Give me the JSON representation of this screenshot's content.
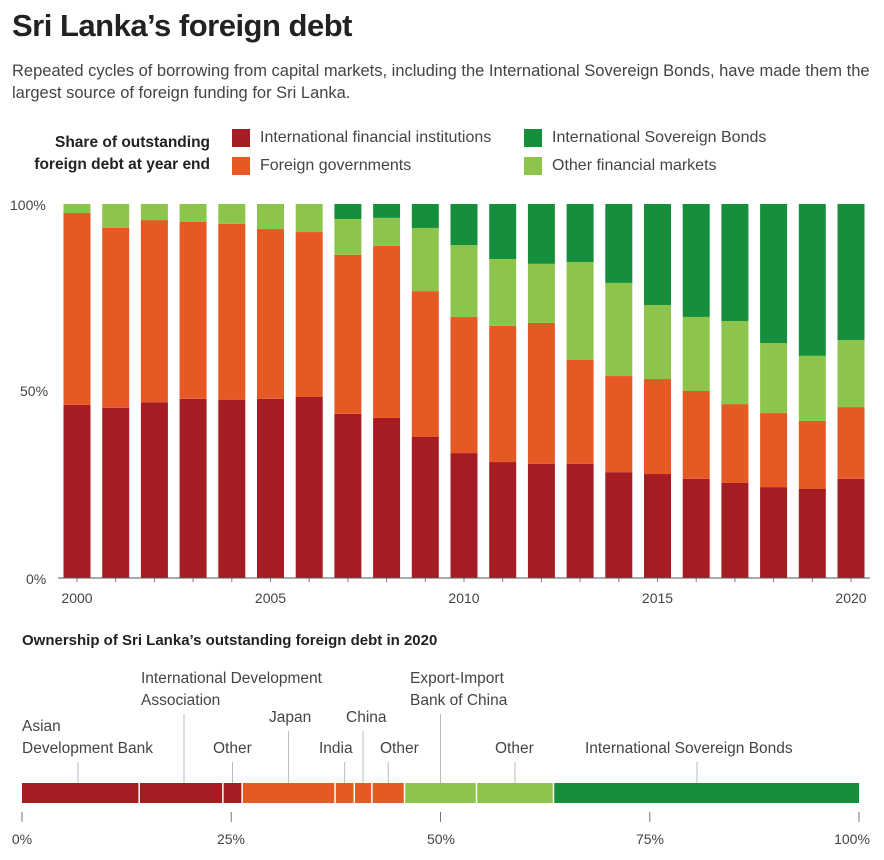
{
  "title": "Sri Lanka’s foreign debt",
  "subtitle": "Repeated cycles of borrowing from capital markets, including the International Sovereign Bonds, have made them the largest source of foreign funding for Sri Lanka.",
  "colors": {
    "ifi": "#a51d23",
    "fg": "#e65925",
    "isb": "#168f3c",
    "ofm": "#8dc44b"
  },
  "chart_data": [
    {
      "type": "bar",
      "stacked": true,
      "title": "Share of outstanding foreign debt at year end",
      "title_lines": [
        "Share of outstanding",
        "foreign debt at year end"
      ],
      "legend": [
        "International financial institutions",
        "Foreign governments",
        "International Sovereign Bonds",
        "Other financial markets"
      ],
      "legend_placement": "top",
      "categories": [
        2000,
        2001,
        2002,
        2003,
        2004,
        2005,
        2006,
        2007,
        2008,
        2009,
        2010,
        2011,
        2012,
        2013,
        2014,
        2015,
        2016,
        2017,
        2018,
        2019,
        2020
      ],
      "x_tick_labels": [
        "2000",
        "2005",
        "2010",
        "2015",
        "2020"
      ],
      "y_tick_labels": [
        "100%",
        "50%",
        "0%"
      ],
      "ylim": [
        0,
        100
      ],
      "series": [
        {
          "name": "International financial institutions",
          "key": "ifi",
          "values": [
            46.3,
            45.5,
            47.0,
            47.9,
            47.6,
            47.9,
            48.4,
            43.9,
            42.8,
            37.7,
            33.4,
            31.0,
            30.5,
            30.5,
            28.3,
            27.8,
            26.5,
            25.4,
            24.3,
            23.8,
            26.5
          ]
        },
        {
          "name": "Foreign governments",
          "key": "fg",
          "values": [
            51.3,
            48.1,
            48.7,
            47.3,
            47.1,
            45.4,
            44.1,
            42.5,
            46.0,
            39.0,
            36.4,
            36.4,
            37.7,
            27.8,
            25.7,
            25.4,
            23.5,
            21.1,
            19.8,
            18.2,
            19.2
          ]
        },
        {
          "name": "Other financial markets",
          "key": "ofm",
          "values": [
            2.4,
            6.4,
            4.3,
            4.8,
            5.3,
            6.7,
            7.5,
            9.6,
            7.5,
            16.9,
            19.2,
            17.9,
            15.8,
            26.2,
            24.9,
            19.8,
            19.8,
            22.2,
            18.7,
            17.4,
            17.9
          ]
        },
        {
          "name": "International Sovereign Bonds",
          "key": "isb",
          "values": [
            0,
            0,
            0,
            0,
            0,
            0,
            0,
            4.0,
            3.7,
            6.4,
            11.0,
            14.7,
            16.0,
            15.5,
            21.1,
            27.0,
            30.2,
            31.3,
            37.2,
            40.6,
            36.4
          ]
        }
      ]
    },
    {
      "type": "bar",
      "stacked": true,
      "orientation": "horizontal",
      "title": "Ownership of Sri Lanka’s outstanding foreign debt in 2020",
      "x_tick_labels": [
        "0%",
        "25%",
        "50%",
        "75%",
        "100%"
      ],
      "xlim": [
        0,
        100
      ],
      "segments": [
        {
          "label": "Asian Development Bank",
          "lines": [
            "Asian",
            "Development Bank"
          ],
          "group": "ifi",
          "value": 14.0
        },
        {
          "label": "International Development Association",
          "lines": [
            "International Development",
            "Association"
          ],
          "group": "ifi",
          "value": 10.0
        },
        {
          "label": "Other",
          "lines": [
            "Other"
          ],
          "group": "ifi",
          "value": 2.3
        },
        {
          "label": "Japan",
          "lines": [
            "Japan"
          ],
          "group": "fg",
          "value": 11.1
        },
        {
          "label": "India",
          "lines": [
            "India"
          ],
          "group": "fg",
          "value": 2.3
        },
        {
          "label": "China",
          "lines": [
            "China"
          ],
          "group": "fg",
          "value": 2.1
        },
        {
          "label": "Other",
          "lines": [
            "Other"
          ],
          "group": "fg",
          "value": 3.9
        },
        {
          "label": "Export-Import Bank of China",
          "lines": [
            "Export-Import",
            "Bank of China"
          ],
          "group": "ofm",
          "value": 8.6
        },
        {
          "label": "Other",
          "lines": [
            "Other"
          ],
          "group": "ofm",
          "value": 9.2
        },
        {
          "label": "International Sovereign Bonds",
          "lines": [
            "International Sovereign Bonds"
          ],
          "group": "isb",
          "value": 36.5
        }
      ]
    }
  ]
}
